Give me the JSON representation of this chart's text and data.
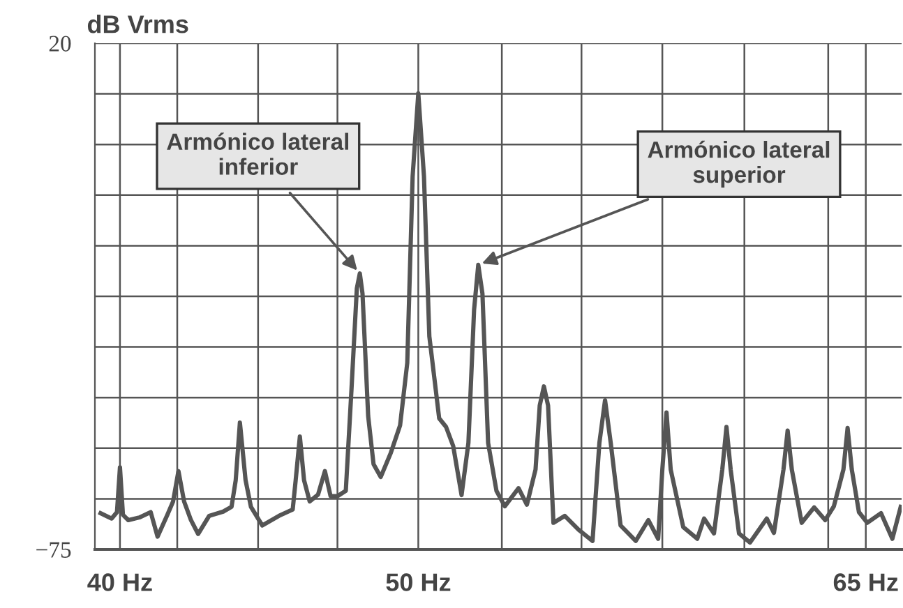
{
  "chart_data": {
    "type": "line",
    "ylabel": "dB Vrms",
    "x": [
      39.35,
      39.72,
      39.9,
      40.0,
      40.1,
      40.28,
      40.65,
      41.03,
      41.26,
      41.59,
      41.78,
      41.96,
      42.15,
      42.38,
      42.62,
      42.99,
      43.46,
      43.74,
      43.88,
      44.02,
      44.21,
      44.39,
      44.77,
      45.33,
      45.79,
      45.89,
      46.03,
      46.17,
      46.36,
      46.64,
      46.87,
      47.06,
      47.29,
      47.57,
      47.76,
      47.94,
      48.04,
      48.13,
      48.32,
      48.5,
      48.74,
      49.07,
      49.39,
      49.63,
      49.81,
      50.0,
      50.19,
      50.37,
      50.7,
      50.93,
      51.17,
      51.45,
      51.68,
      51.87,
      52.01,
      52.15,
      52.34,
      52.62,
      52.9,
      53.36,
      53.64,
      53.93,
      54.07,
      54.21,
      54.35,
      54.53,
      54.91,
      55.37,
      55.84,
      56.07,
      56.26,
      56.45,
      56.78,
      57.29,
      57.71,
      58.04,
      58.18,
      58.32,
      58.46,
      58.88,
      59.35,
      59.58,
      59.91,
      60.19,
      60.33,
      60.47,
      60.75,
      61.12,
      61.68,
      61.92,
      62.24,
      62.38,
      62.52,
      62.85,
      63.27,
      63.64,
      63.93,
      64.25,
      64.39,
      64.53,
      64.77,
      65.05,
      65.51,
      65.89,
      66.17
    ],
    "series": [
      {
        "color": "#555555",
        "values": [
          -68.2,
          -69.2,
          -68,
          -59.6,
          -68.5,
          -69.5,
          -69,
          -68,
          -72.6,
          -68.5,
          -66,
          -60.3,
          -66,
          -69.5,
          -72.1,
          -68.7,
          -67.9,
          -67,
          -62,
          -51.2,
          -62,
          -67,
          -70.5,
          -68.7,
          -67.5,
          -62,
          -53.8,
          -62,
          -66,
          -64.7,
          -60.3,
          -65,
          -65,
          -64,
          -45,
          -26,
          -23.2,
          -27,
          -50,
          -59,
          -61.4,
          -57,
          -51.7,
          -40,
          -5,
          10.6,
          -5,
          -35,
          -50.4,
          -52,
          -55.6,
          -64.8,
          -55,
          -30,
          -21.6,
          -27,
          -55,
          -64,
          -66.9,
          -63.5,
          -66.6,
          -60,
          -48,
          -44.4,
          -48,
          -70,
          -68.7,
          -71.3,
          -73.4,
          -55,
          -47,
          -55,
          -70.5,
          -73.4,
          -69.5,
          -73,
          -60,
          -49.3,
          -60,
          -70.8,
          -73,
          -69.2,
          -72,
          -60,
          -52,
          -60,
          -72,
          -73.7,
          -69.2,
          -71.9,
          -60,
          -52.7,
          -60,
          -70,
          -67.1,
          -69.5,
          -66.9,
          -60,
          -52.2,
          -60,
          -68,
          -70,
          -68.2,
          -73,
          -67
        ]
      }
    ],
    "xlim": [
      39.16,
      66.2
    ],
    "xticks": [
      {
        "value": 40,
        "label": "40 Hz"
      },
      {
        "value": 41.92,
        "label": null
      },
      {
        "value": 44.63,
        "label": null
      },
      {
        "value": 47.29,
        "label": null
      },
      {
        "value": 50,
        "label": "50 Hz"
      },
      {
        "value": 52.8,
        "label": null
      },
      {
        "value": 55.47,
        "label": null
      },
      {
        "value": 58.18,
        "label": null
      },
      {
        "value": 60.93,
        "label": null
      },
      {
        "value": 63.74,
        "label": null
      },
      {
        "value": 65,
        "label": "65 Hz"
      }
    ],
    "ylim": [
      -75,
      20
    ],
    "yticks": [
      {
        "value": -75,
        "label": "−75"
      },
      {
        "value": -65.5,
        "label": null
      },
      {
        "value": -56,
        "label": null
      },
      {
        "value": -46.5,
        "label": null
      },
      {
        "value": -37,
        "label": null
      },
      {
        "value": -27.5,
        "label": null
      },
      {
        "value": -18,
        "label": null
      },
      {
        "value": -8.5,
        "label": null
      },
      {
        "value": 1,
        "label": null
      },
      {
        "value": 10.5,
        "label": null
      },
      20
    ],
    "grid": true,
    "line_style": "solid",
    "marker": "none",
    "annotations": [
      {
        "text": "Armónico lateral\ninferior",
        "x": 48.04,
        "y": -23.2
      },
      {
        "text": "Armónico lateral\nsuperior",
        "x": 52.01,
        "y": -21.6
      }
    ]
  }
}
